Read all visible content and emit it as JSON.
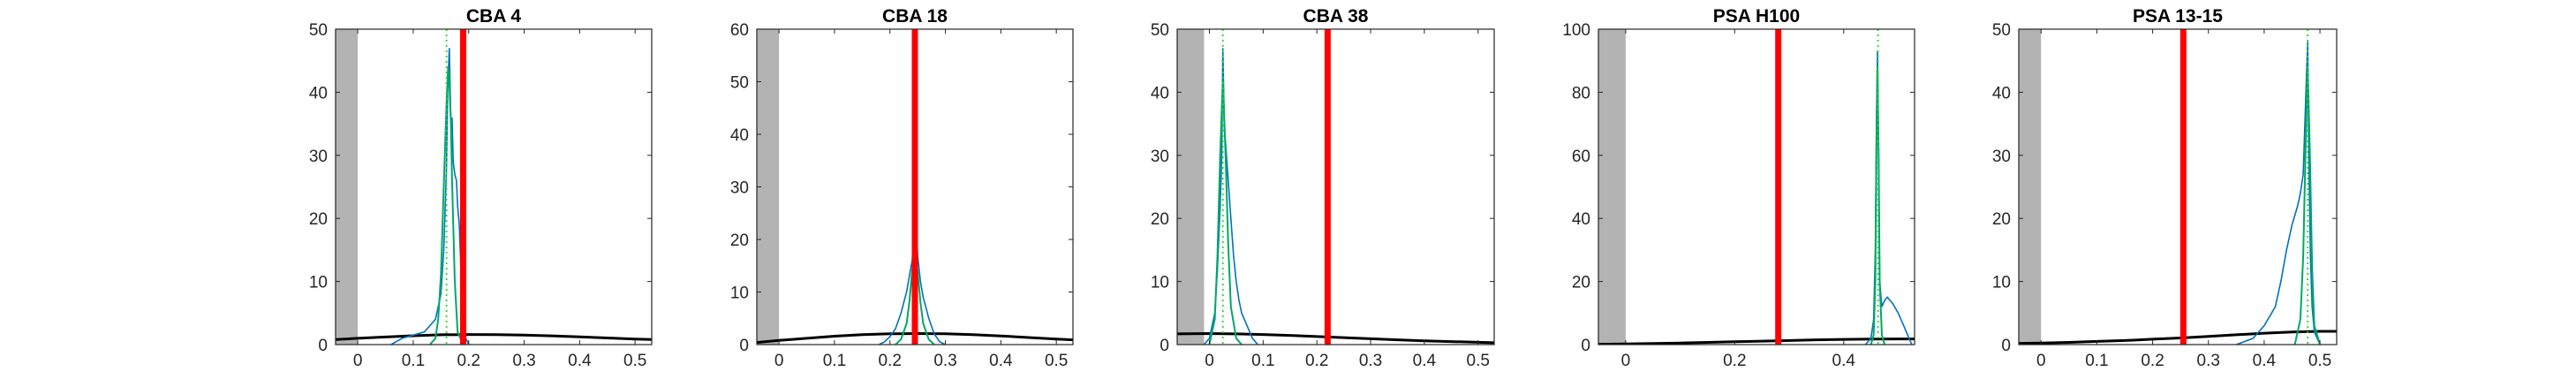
{
  "figure": {
    "background": "#ffffff"
  },
  "style": {
    "shade_color": "#b3b3b3",
    "hist_color": "#0072bd",
    "fit_color": "#00a866",
    "mode_line_color": "#22dd22",
    "marker_color": "#ff0000",
    "curve_color": "#000000",
    "axes_color": "#262626"
  },
  "chart_data": [
    {
      "type": "line",
      "title": "CBA 4",
      "xlim": [
        -0.04,
        0.53
      ],
      "ylim": [
        0,
        50
      ],
      "xticks": [
        0,
        0.1,
        0.2,
        0.3,
        0.4,
        0.5
      ],
      "xtick_labels": [
        "0",
        "0.1",
        "0.2",
        "0.3",
        "0.4",
        "0.5"
      ],
      "yticks": [
        0,
        10,
        20,
        30,
        40,
        50
      ],
      "ytick_labels": [
        "0",
        "10",
        "20",
        "30",
        "40",
        "50"
      ],
      "grid": false,
      "shaded_region": [
        -0.04,
        0.0
      ],
      "red_marker_x": 0.19,
      "mode_line_x": 0.16,
      "histogram": {
        "x": [
          0.06,
          0.08,
          0.1,
          0.12,
          0.13,
          0.14,
          0.15,
          0.155,
          0.16,
          0.162,
          0.165,
          0.168,
          0.17,
          0.172,
          0.175,
          0.178,
          0.18,
          0.183,
          0.186,
          0.19,
          0.195,
          0.2
        ],
        "y": [
          0,
          1,
          1.5,
          2,
          3,
          4,
          8,
          15,
          28,
          40,
          47,
          35,
          36,
          29,
          27,
          26,
          22,
          19,
          12,
          5,
          1,
          0
        ]
      },
      "fit_curve": {
        "x": [
          0.13,
          0.14,
          0.145,
          0.15,
          0.155,
          0.16,
          0.163,
          0.165,
          0.168,
          0.17,
          0.175,
          0.18,
          0.19
        ],
        "y": [
          0,
          1,
          4,
          11,
          25,
          38,
          44,
          42,
          35,
          26,
          10,
          2,
          0
        ]
      },
      "broad_curve": {
        "x": [
          -0.04,
          0.0,
          0.05,
          0.1,
          0.15,
          0.2,
          0.25,
          0.3,
          0.35,
          0.4,
          0.45,
          0.5,
          0.53
        ],
        "y": [
          0.8,
          1.0,
          1.2,
          1.4,
          1.55,
          1.6,
          1.58,
          1.5,
          1.38,
          1.22,
          1.05,
          0.88,
          0.8
        ]
      }
    },
    {
      "type": "line",
      "title": "CBA 18",
      "xlim": [
        -0.04,
        0.53
      ],
      "ylim": [
        0,
        60
      ],
      "xticks": [
        0,
        0.1,
        0.2,
        0.3,
        0.4,
        0.5
      ],
      "xtick_labels": [
        "0",
        "0.1",
        "0.2",
        "0.3",
        "0.4",
        "0.5"
      ],
      "yticks": [
        0,
        10,
        20,
        30,
        40,
        50,
        60
      ],
      "ytick_labels": [
        "0",
        "10",
        "20",
        "30",
        "40",
        "50",
        "60"
      ],
      "grid": false,
      "shaded_region": [
        -0.04,
        0.0
      ],
      "red_marker_x": 0.245,
      "mode_line_x": 0.245,
      "histogram": {
        "x": [
          0.18,
          0.19,
          0.2,
          0.21,
          0.215,
          0.22,
          0.225,
          0.23,
          0.235,
          0.24,
          0.243,
          0.245,
          0.248,
          0.25,
          0.255,
          0.26,
          0.265,
          0.27,
          0.28,
          0.29,
          0.3
        ],
        "y": [
          0,
          0.5,
          1.5,
          3,
          4.5,
          6,
          8,
          10,
          13,
          16,
          20,
          24,
          21,
          17,
          12,
          9,
          7,
          5,
          2,
          0.5,
          0
        ]
      },
      "fit_curve": {
        "x": [
          0.21,
          0.22,
          0.23,
          0.235,
          0.24,
          0.245,
          0.25,
          0.255,
          0.26,
          0.27,
          0.28
        ],
        "y": [
          0,
          1,
          4,
          8,
          14,
          18,
          14,
          8,
          4,
          1,
          0
        ]
      },
      "broad_curve": {
        "x": [
          -0.04,
          0.0,
          0.05,
          0.1,
          0.15,
          0.2,
          0.25,
          0.3,
          0.35,
          0.4,
          0.45,
          0.5,
          0.53
        ],
        "y": [
          0.4,
          0.8,
          1.2,
          1.6,
          1.9,
          2.05,
          2.1,
          2.05,
          1.9,
          1.65,
          1.35,
          1.05,
          0.9
        ]
      }
    },
    {
      "type": "line",
      "title": "CBA 38",
      "xlim": [
        -0.06,
        0.53
      ],
      "ylim": [
        0,
        50
      ],
      "xticks": [
        0,
        0.1,
        0.2,
        0.3,
        0.4,
        0.5
      ],
      "xtick_labels": [
        "0",
        "0.1",
        "0.2",
        "0.3",
        "0.4",
        "0.5"
      ],
      "yticks": [
        0,
        10,
        20,
        30,
        40,
        50
      ],
      "ytick_labels": [
        "0",
        "10",
        "20",
        "30",
        "40",
        "50"
      ],
      "grid": false,
      "shaded_region": [
        -0.06,
        -0.01
      ],
      "red_marker_x": 0.22,
      "mode_line_x": 0.025,
      "histogram": {
        "x": [
          -0.01,
          0.0,
          0.01,
          0.015,
          0.02,
          0.023,
          0.025,
          0.028,
          0.03,
          0.035,
          0.04,
          0.045,
          0.05,
          0.055,
          0.06,
          0.07,
          0.08,
          0.09
        ],
        "y": [
          0,
          1,
          5,
          12,
          22,
          30,
          47,
          34,
          32,
          26,
          20,
          14,
          10,
          7,
          5,
          3,
          1,
          0
        ]
      },
      "fit_curve": {
        "x": [
          0.0,
          0.01,
          0.015,
          0.02,
          0.025,
          0.03,
          0.035,
          0.04,
          0.05,
          0.06
        ],
        "y": [
          0,
          4,
          14,
          30,
          42,
          30,
          16,
          6,
          1,
          0
        ]
      },
      "broad_curve": {
        "x": [
          -0.06,
          0.0,
          0.05,
          0.1,
          0.15,
          0.2,
          0.25,
          0.3,
          0.35,
          0.4,
          0.45,
          0.5,
          0.53
        ],
        "y": [
          1.7,
          1.75,
          1.7,
          1.6,
          1.45,
          1.28,
          1.1,
          0.92,
          0.75,
          0.6,
          0.47,
          0.36,
          0.3
        ]
      }
    },
    {
      "type": "line",
      "title": "PSA H100",
      "xlim": [
        -0.05,
        0.53
      ],
      "ylim": [
        0,
        100
      ],
      "xticks": [
        0,
        0.2,
        0.4
      ],
      "xtick_labels": [
        "0",
        "0.2",
        "0.4"
      ],
      "yticks": [
        0,
        20,
        40,
        60,
        80,
        100
      ],
      "ytick_labels": [
        "0",
        "20",
        "40",
        "60",
        "80",
        "100"
      ],
      "grid": false,
      "shaded_region": [
        -0.05,
        0.0
      ],
      "red_marker_x": 0.28,
      "mode_line_x": 0.463,
      "histogram": {
        "x": [
          0.44,
          0.45,
          0.455,
          0.458,
          0.46,
          0.462,
          0.464,
          0.466,
          0.47,
          0.475,
          0.48,
          0.49,
          0.5,
          0.51,
          0.52,
          0.525
        ],
        "y": [
          0,
          2,
          8,
          30,
          70,
          93,
          60,
          20,
          12,
          14,
          15,
          13,
          10,
          6,
          2,
          0
        ]
      },
      "fit_curve": {
        "x": [
          0.45,
          0.455,
          0.458,
          0.46,
          0.462,
          0.464,
          0.466,
          0.47,
          0.475
        ],
        "y": [
          0,
          3,
          20,
          60,
          88,
          60,
          20,
          3,
          0
        ]
      },
      "broad_curve": {
        "x": [
          -0.05,
          0.0,
          0.05,
          0.1,
          0.15,
          0.2,
          0.25,
          0.3,
          0.35,
          0.4,
          0.45,
          0.5,
          0.53
        ],
        "y": [
          0.1,
          0.2,
          0.35,
          0.5,
          0.7,
          0.9,
          1.1,
          1.3,
          1.5,
          1.65,
          1.75,
          1.8,
          1.8
        ]
      }
    },
    {
      "type": "line",
      "title": "PSA 13-15",
      "xlim": [
        -0.04,
        0.53
      ],
      "ylim": [
        0,
        50
      ],
      "xticks": [
        0,
        0.1,
        0.2,
        0.3,
        0.4,
        0.5
      ],
      "xtick_labels": [
        "0",
        "0.1",
        "0.2",
        "0.3",
        "0.4",
        "0.5"
      ],
      "yticks": [
        0,
        10,
        20,
        30,
        40,
        50
      ],
      "ytick_labels": [
        "0",
        "10",
        "20",
        "30",
        "40",
        "50"
      ],
      "grid": false,
      "shaded_region": [
        -0.04,
        0.0
      ],
      "red_marker_x": 0.255,
      "mode_line_x": 0.478,
      "histogram": {
        "x": [
          0.35,
          0.38,
          0.4,
          0.42,
          0.43,
          0.44,
          0.45,
          0.46,
          0.465,
          0.47,
          0.473,
          0.476,
          0.478,
          0.48,
          0.483,
          0.486,
          0.49,
          0.5
        ],
        "y": [
          0,
          1,
          3,
          6,
          10,
          15,
          19,
          22,
          24,
          27,
          35,
          43,
          48,
          30,
          14,
          6,
          2,
          0
        ]
      },
      "fit_curve": {
        "x": [
          0.455,
          0.465,
          0.47,
          0.474,
          0.478,
          0.482,
          0.486,
          0.49,
          0.5
        ],
        "y": [
          0,
          4,
          14,
          30,
          44,
          30,
          12,
          3,
          0
        ]
      },
      "broad_curve": {
        "x": [
          -0.04,
          0.0,
          0.05,
          0.1,
          0.15,
          0.2,
          0.25,
          0.3,
          0.35,
          0.4,
          0.45,
          0.5,
          0.53
        ],
        "y": [
          0.2,
          0.25,
          0.35,
          0.5,
          0.65,
          0.85,
          1.05,
          1.3,
          1.55,
          1.8,
          2.0,
          2.1,
          2.1
        ]
      }
    }
  ]
}
